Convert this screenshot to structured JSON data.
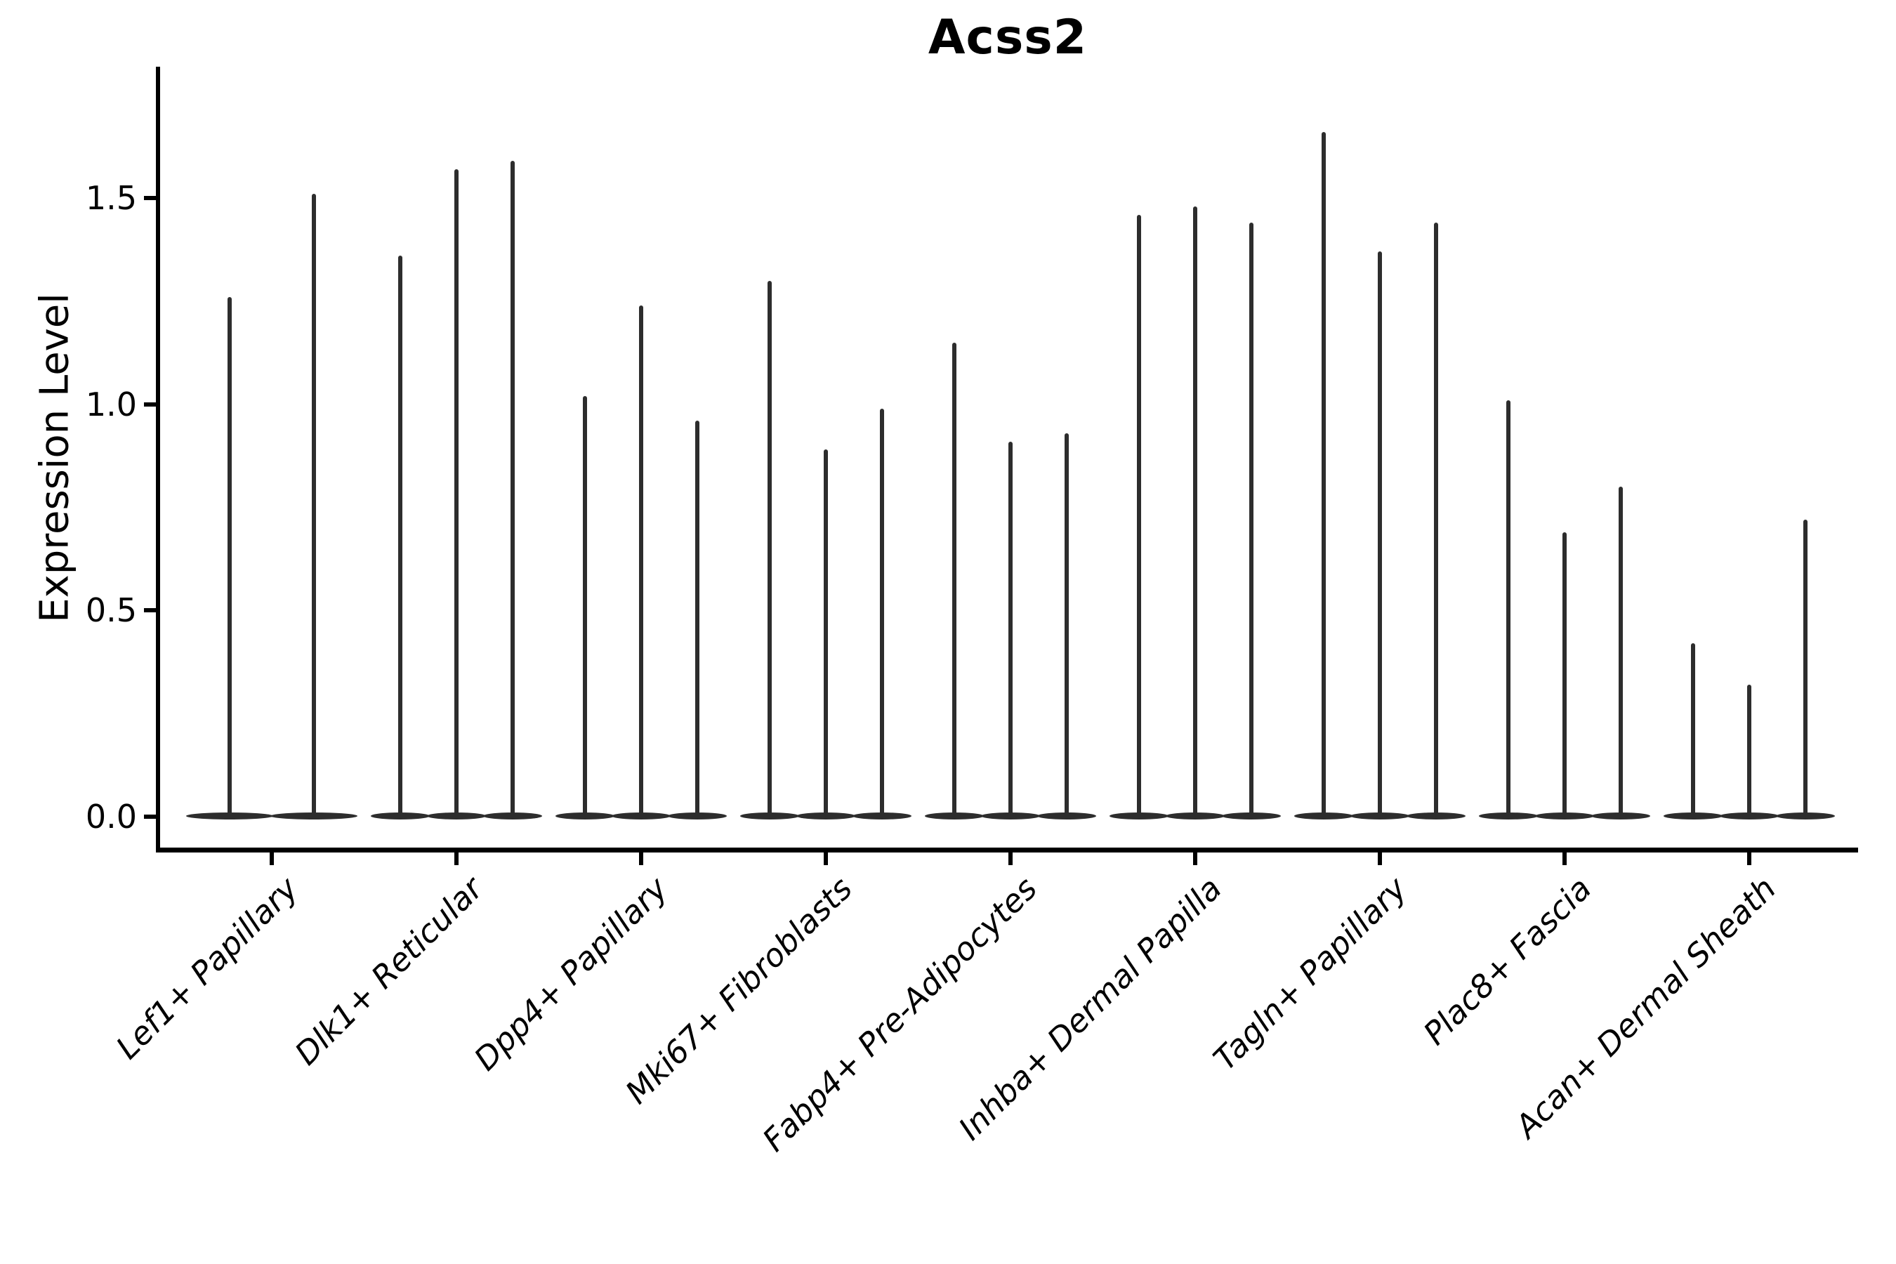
{
  "title": "Acss2",
  "y_axis": {
    "label": "Expression Level",
    "tick_labels": [
      "0.0",
      "0.5",
      "1.0",
      "1.5"
    ],
    "tick_values": [
      0.0,
      0.5,
      1.0,
      1.5
    ]
  },
  "chart_data": {
    "type": "violin",
    "title": "Acss2",
    "xlabel": "",
    "ylabel": "Expression Level",
    "ylim": [
      -0.08,
      1.82
    ],
    "yticks": [
      0.0,
      0.5,
      1.0,
      1.5
    ],
    "grid": "off",
    "legend": "none",
    "x_tick_rotation": 45,
    "ink_color": "#2d2d2d",
    "axis_color": "#000000",
    "description": "Single-cell expression violin plot; each category holds 2-3 extremely thin violins: nearly all density flattened at 0 with a hairline spike reaching the maximum expression value.",
    "groups": [
      {
        "label": "Lef1+ Papillary",
        "violin_maxima": [
          1.26,
          1.51
        ]
      },
      {
        "label": "Dlk1+ Reticular",
        "violin_maxima": [
          1.36,
          1.57,
          1.59
        ]
      },
      {
        "label": "Dpp4+ Papillary",
        "violin_maxima": [
          1.02,
          1.24,
          0.96
        ]
      },
      {
        "label": "Mki67+ Fibroblasts",
        "violin_maxima": [
          1.3,
          0.89,
          0.99
        ]
      },
      {
        "label": "Fabp4+ Pre-Adipocytes",
        "violin_maxima": [
          1.15,
          0.91,
          0.93
        ]
      },
      {
        "label": "Inhba+ Dermal Papilla",
        "violin_maxima": [
          1.46,
          1.48,
          1.44
        ]
      },
      {
        "label": "Tagln+ Papillary",
        "violin_maxima": [
          1.66,
          1.37,
          1.44
        ]
      },
      {
        "label": "Plac8+ Fascia",
        "violin_maxima": [
          1.01,
          0.69,
          0.8
        ]
      },
      {
        "label": "Acan+ Dermal Sheath",
        "violin_maxima": [
          0.42,
          0.32,
          0.72
        ]
      }
    ]
  }
}
